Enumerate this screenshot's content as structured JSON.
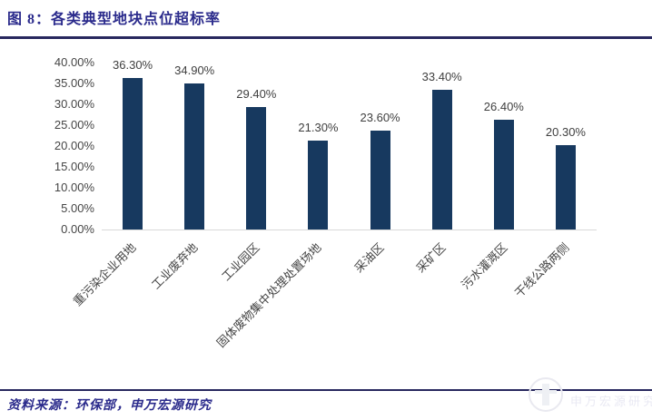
{
  "figure": {
    "title": "图 8：各类典型地块点位超标率",
    "source": "资料来源：环保部，申万宏源研究"
  },
  "watermark": {
    "logo": "shenwan-hongyuan-logo",
    "text": "申万宏源研究"
  },
  "colors": {
    "bar": "#17395f",
    "rule": "#27275e",
    "title_text": "#2b2b8c",
    "tick_label": "#454545",
    "data_label": "#3f3f3f",
    "axis_line": "#d9d9d9"
  },
  "chart_data": {
    "type": "bar",
    "title": "各类典型地块点位超标率",
    "categories": [
      "重污染企业用地",
      "工业废弃地",
      "工业园区",
      "固体废物集中处理处置场地",
      "采油区",
      "采矿区",
      "污水灌溉区",
      "干线公路两侧"
    ],
    "values": [
      36.3,
      34.9,
      29.4,
      21.3,
      23.6,
      33.4,
      26.4,
      20.3
    ],
    "value_labels": [
      "36.30%",
      "34.90%",
      "29.40%",
      "21.30%",
      "23.60%",
      "33.40%",
      "26.40%",
      "20.30%"
    ],
    "y_tick_labels": [
      "0.00%",
      "5.00%",
      "10.00%",
      "15.00%",
      "20.00%",
      "25.00%",
      "30.00%",
      "35.00%",
      "40.00%"
    ],
    "ylim": [
      0,
      40
    ],
    "xlabel": "",
    "ylabel": "",
    "grid": false,
    "legend": null,
    "xtick_rotation": 45
  }
}
